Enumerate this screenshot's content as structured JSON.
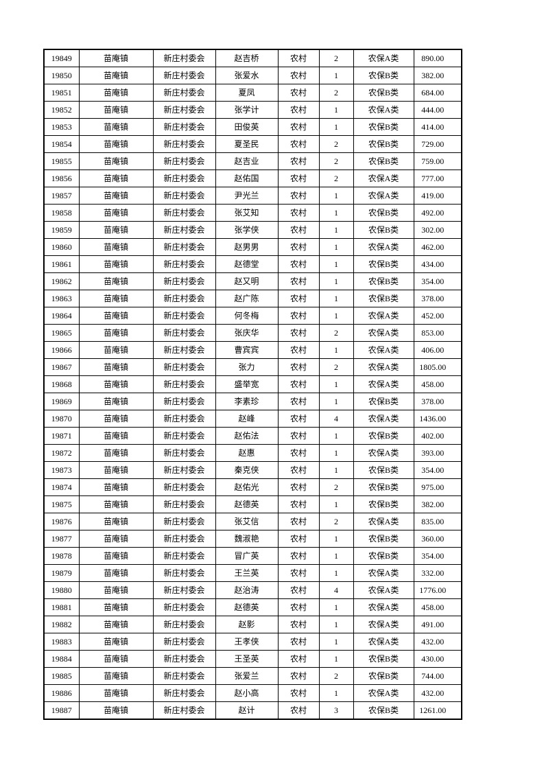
{
  "page": {
    "background_color": "#ffffff",
    "text_color": "#000000",
    "border_color": "#000000"
  },
  "table": {
    "row_count": 39,
    "rows": [
      {
        "id": "19849",
        "town": "苗庵镇",
        "village": "新庄村委会",
        "name": "赵吉桥",
        "area_type": "农村",
        "count": "2",
        "category": "农保A类",
        "amount": "890.00"
      },
      {
        "id": "19850",
        "town": "苗庵镇",
        "village": "新庄村委会",
        "name": "张爱水",
        "area_type": "农村",
        "count": "1",
        "category": "农保B类",
        "amount": "382.00"
      },
      {
        "id": "19851",
        "town": "苗庵镇",
        "village": "新庄村委会",
        "name": "夏凤",
        "area_type": "农村",
        "count": "2",
        "category": "农保B类",
        "amount": "684.00"
      },
      {
        "id": "19852",
        "town": "苗庵镇",
        "village": "新庄村委会",
        "name": "张学计",
        "area_type": "农村",
        "count": "1",
        "category": "农保A类",
        "amount": "444.00"
      },
      {
        "id": "19853",
        "town": "苗庵镇",
        "village": "新庄村委会",
        "name": "田俊英",
        "area_type": "农村",
        "count": "1",
        "category": "农保B类",
        "amount": "414.00"
      },
      {
        "id": "19854",
        "town": "苗庵镇",
        "village": "新庄村委会",
        "name": "夏圣民",
        "area_type": "农村",
        "count": "2",
        "category": "农保B类",
        "amount": "729.00"
      },
      {
        "id": "19855",
        "town": "苗庵镇",
        "village": "新庄村委会",
        "name": "赵吉业",
        "area_type": "农村",
        "count": "2",
        "category": "农保B类",
        "amount": "759.00"
      },
      {
        "id": "19856",
        "town": "苗庵镇",
        "village": "新庄村委会",
        "name": "赵佑国",
        "area_type": "农村",
        "count": "2",
        "category": "农保A类",
        "amount": "777.00"
      },
      {
        "id": "19857",
        "town": "苗庵镇",
        "village": "新庄村委会",
        "name": "尹光兰",
        "area_type": "农村",
        "count": "1",
        "category": "农保A类",
        "amount": "419.00"
      },
      {
        "id": "19858",
        "town": "苗庵镇",
        "village": "新庄村委会",
        "name": "张艾知",
        "area_type": "农村",
        "count": "1",
        "category": "农保B类",
        "amount": "492.00"
      },
      {
        "id": "19859",
        "town": "苗庵镇",
        "village": "新庄村委会",
        "name": "张学侠",
        "area_type": "农村",
        "count": "1",
        "category": "农保B类",
        "amount": "302.00"
      },
      {
        "id": "19860",
        "town": "苗庵镇",
        "village": "新庄村委会",
        "name": "赵男男",
        "area_type": "农村",
        "count": "1",
        "category": "农保A类",
        "amount": "462.00"
      },
      {
        "id": "19861",
        "town": "苗庵镇",
        "village": "新庄村委会",
        "name": "赵德堂",
        "area_type": "农村",
        "count": "1",
        "category": "农保B类",
        "amount": "434.00"
      },
      {
        "id": "19862",
        "town": "苗庵镇",
        "village": "新庄村委会",
        "name": "赵又明",
        "area_type": "农村",
        "count": "1",
        "category": "农保B类",
        "amount": "354.00"
      },
      {
        "id": "19863",
        "town": "苗庵镇",
        "village": "新庄村委会",
        "name": "赵广陈",
        "area_type": "农村",
        "count": "1",
        "category": "农保B类",
        "amount": "378.00"
      },
      {
        "id": "19864",
        "town": "苗庵镇",
        "village": "新庄村委会",
        "name": "何冬梅",
        "area_type": "农村",
        "count": "1",
        "category": "农保A类",
        "amount": "452.00"
      },
      {
        "id": "19865",
        "town": "苗庵镇",
        "village": "新庄村委会",
        "name": "张庆华",
        "area_type": "农村",
        "count": "2",
        "category": "农保A类",
        "amount": "853.00"
      },
      {
        "id": "19866",
        "town": "苗庵镇",
        "village": "新庄村委会",
        "name": "曹宾宾",
        "area_type": "农村",
        "count": "1",
        "category": "农保A类",
        "amount": "406.00"
      },
      {
        "id": "19867",
        "town": "苗庵镇",
        "village": "新庄村委会",
        "name": "张力",
        "area_type": "农村",
        "count": "2",
        "category": "农保A类",
        "amount": "1805.00"
      },
      {
        "id": "19868",
        "town": "苗庵镇",
        "village": "新庄村委会",
        "name": "盛举宽",
        "area_type": "农村",
        "count": "1",
        "category": "农保A类",
        "amount": "458.00"
      },
      {
        "id": "19869",
        "town": "苗庵镇",
        "village": "新庄村委会",
        "name": "李素珍",
        "area_type": "农村",
        "count": "1",
        "category": "农保B类",
        "amount": "378.00"
      },
      {
        "id": "19870",
        "town": "苗庵镇",
        "village": "新庄村委会",
        "name": "赵峰",
        "area_type": "农村",
        "count": "4",
        "category": "农保A类",
        "amount": "1436.00"
      },
      {
        "id": "19871",
        "town": "苗庵镇",
        "village": "新庄村委会",
        "name": "赵佑法",
        "area_type": "农村",
        "count": "1",
        "category": "农保B类",
        "amount": "402.00"
      },
      {
        "id": "19872",
        "town": "苗庵镇",
        "village": "新庄村委会",
        "name": "赵惠",
        "area_type": "农村",
        "count": "1",
        "category": "农保A类",
        "amount": "393.00"
      },
      {
        "id": "19873",
        "town": "苗庵镇",
        "village": "新庄村委会",
        "name": "秦克侠",
        "area_type": "农村",
        "count": "1",
        "category": "农保B类",
        "amount": "354.00"
      },
      {
        "id": "19874",
        "town": "苗庵镇",
        "village": "新庄村委会",
        "name": "赵佑光",
        "area_type": "农村",
        "count": "2",
        "category": "农保B类",
        "amount": "975.00"
      },
      {
        "id": "19875",
        "town": "苗庵镇",
        "village": "新庄村委会",
        "name": "赵德英",
        "area_type": "农村",
        "count": "1",
        "category": "农保B类",
        "amount": "382.00"
      },
      {
        "id": "19876",
        "town": "苗庵镇",
        "village": "新庄村委会",
        "name": "张艾信",
        "area_type": "农村",
        "count": "2",
        "category": "农保A类",
        "amount": "835.00"
      },
      {
        "id": "19877",
        "town": "苗庵镇",
        "village": "新庄村委会",
        "name": "魏淑艳",
        "area_type": "农村",
        "count": "1",
        "category": "农保B类",
        "amount": "360.00"
      },
      {
        "id": "19878",
        "town": "苗庵镇",
        "village": "新庄村委会",
        "name": "冒广英",
        "area_type": "农村",
        "count": "1",
        "category": "农保B类",
        "amount": "354.00"
      },
      {
        "id": "19879",
        "town": "苗庵镇",
        "village": "新庄村委会",
        "name": "王兰英",
        "area_type": "农村",
        "count": "1",
        "category": "农保A类",
        "amount": "332.00"
      },
      {
        "id": "19880",
        "town": "苗庵镇",
        "village": "新庄村委会",
        "name": "赵治涛",
        "area_type": "农村",
        "count": "4",
        "category": "农保A类",
        "amount": "1776.00"
      },
      {
        "id": "19881",
        "town": "苗庵镇",
        "village": "新庄村委会",
        "name": "赵德英",
        "area_type": "农村",
        "count": "1",
        "category": "农保A类",
        "amount": "458.00"
      },
      {
        "id": "19882",
        "town": "苗庵镇",
        "village": "新庄村委会",
        "name": "赵影",
        "area_type": "农村",
        "count": "1",
        "category": "农保A类",
        "amount": "491.00"
      },
      {
        "id": "19883",
        "town": "苗庵镇",
        "village": "新庄村委会",
        "name": "王孝侠",
        "area_type": "农村",
        "count": "1",
        "category": "农保A类",
        "amount": "432.00"
      },
      {
        "id": "19884",
        "town": "苗庵镇",
        "village": "新庄村委会",
        "name": "王圣英",
        "area_type": "农村",
        "count": "1",
        "category": "农保B类",
        "amount": "430.00"
      },
      {
        "id": "19885",
        "town": "苗庵镇",
        "village": "新庄村委会",
        "name": "张爱兰",
        "area_type": "农村",
        "count": "2",
        "category": "农保B类",
        "amount": "744.00"
      },
      {
        "id": "19886",
        "town": "苗庵镇",
        "village": "新庄村委会",
        "name": "赵小高",
        "area_type": "农村",
        "count": "1",
        "category": "农保A类",
        "amount": "432.00"
      },
      {
        "id": "19887",
        "town": "苗庵镇",
        "village": "新庄村委会",
        "name": "赵计",
        "area_type": "农村",
        "count": "3",
        "category": "农保B类",
        "amount": "1261.00"
      }
    ]
  }
}
